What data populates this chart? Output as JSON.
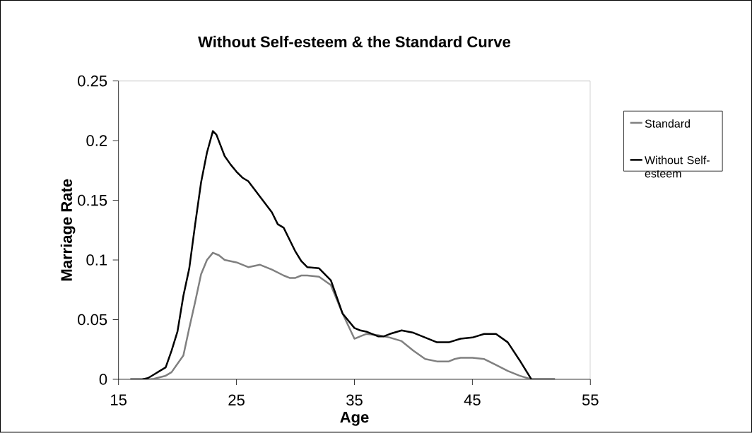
{
  "chart_data": {
    "type": "line",
    "title": "Without Self-esteem & the Standard Curve",
    "xlabel": "Age",
    "ylabel": "Marriage Rate",
    "xlim": [
      15,
      55
    ],
    "xticks": [
      15,
      25,
      35,
      45,
      55
    ],
    "ylim": [
      0,
      0.25
    ],
    "yticks": [
      0,
      0.05,
      0.1,
      0.15,
      0.2,
      0.25
    ],
    "legend": "right",
    "grid": false,
    "marker": "none",
    "line_style": "solid",
    "series": [
      {
        "name": "Standard",
        "color": "#808080",
        "x": [
          17.5,
          18,
          19,
          19.5,
          20,
          20.5,
          21,
          21.5,
          22,
          22.5,
          23,
          23.5,
          24,
          25,
          26,
          26.5,
          27,
          28,
          29,
          29.5,
          30,
          30.5,
          31,
          32,
          33,
          34,
          35,
          35.5,
          36,
          37,
          38,
          39,
          40,
          41,
          42,
          43,
          43.5,
          44,
          45,
          46,
          47,
          48,
          49,
          50
        ],
        "values": [
          0,
          0.0005,
          0.003,
          0.006,
          0.013,
          0.02,
          0.043,
          0.065,
          0.088,
          0.1,
          0.106,
          0.104,
          0.1,
          0.098,
          0.094,
          0.095,
          0.096,
          0.092,
          0.087,
          0.085,
          0.085,
          0.087,
          0.087,
          0.086,
          0.079,
          0.055,
          0.034,
          0.036,
          0.038,
          0.037,
          0.035,
          0.032,
          0.024,
          0.017,
          0.015,
          0.015,
          0.017,
          0.018,
          0.018,
          0.017,
          0.012,
          0.007,
          0.003,
          0
        ]
      },
      {
        "name": "Without Self-esteem",
        "color": "#000000",
        "x": [
          16,
          17,
          17.5,
          18,
          18.5,
          19,
          19.5,
          20,
          20.5,
          21,
          21.5,
          22,
          22.5,
          23,
          23.3,
          24,
          24.5,
          25,
          25.5,
          26,
          27,
          28,
          28.5,
          29,
          30,
          30.5,
          31,
          32,
          33,
          34,
          35,
          35.5,
          36,
          37,
          37.5,
          38,
          39,
          40,
          41,
          42,
          43,
          44,
          45,
          46,
          47,
          48,
          49,
          50,
          51,
          52
        ],
        "values": [
          0,
          0,
          0.001,
          0.004,
          0.007,
          0.01,
          0.024,
          0.04,
          0.07,
          0.093,
          0.13,
          0.165,
          0.19,
          0.208,
          0.205,
          0.187,
          0.18,
          0.174,
          0.169,
          0.166,
          0.153,
          0.14,
          0.13,
          0.127,
          0.107,
          0.099,
          0.094,
          0.093,
          0.083,
          0.055,
          0.043,
          0.041,
          0.04,
          0.036,
          0.036,
          0.038,
          0.041,
          0.039,
          0.035,
          0.031,
          0.031,
          0.034,
          0.035,
          0.038,
          0.038,
          0.031,
          0.016,
          0,
          0,
          0
        ]
      }
    ]
  }
}
